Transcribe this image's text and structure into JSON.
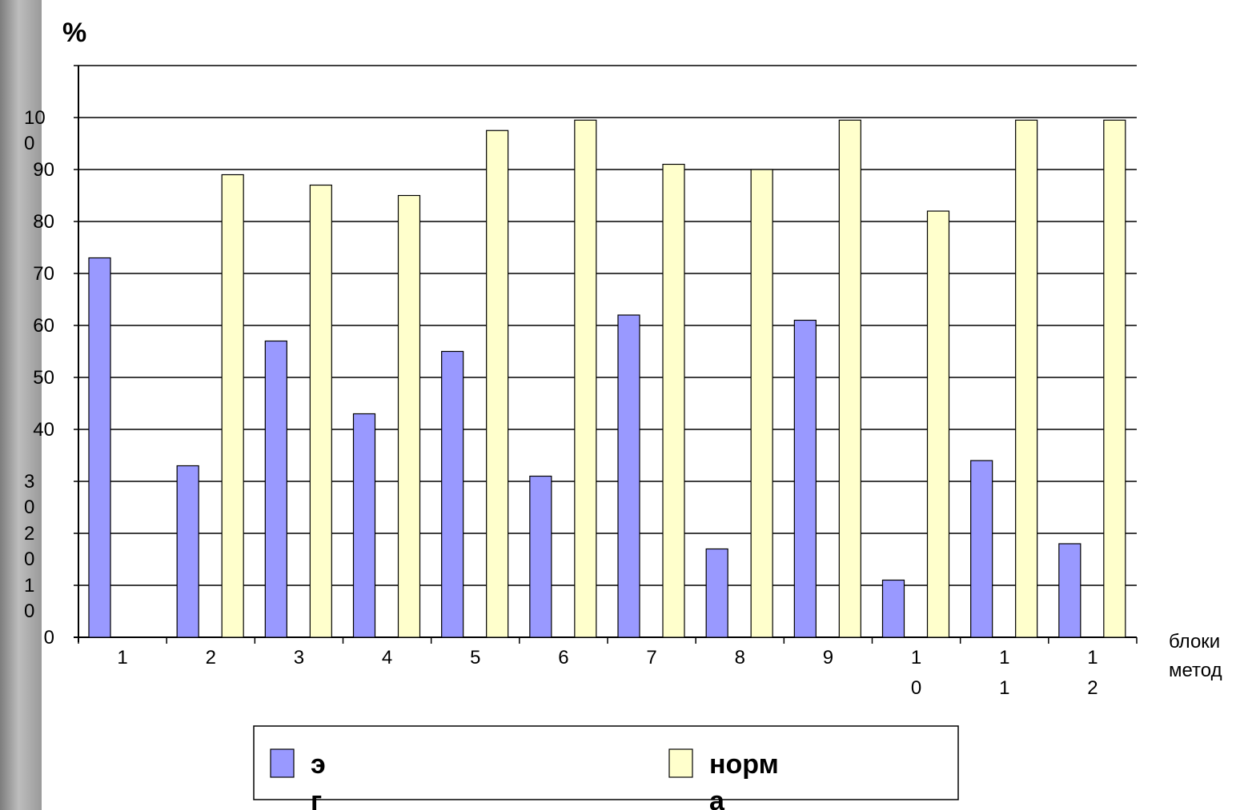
{
  "chart_data": {
    "type": "bar",
    "ylabel": "%",
    "xlabel": [
      "блоки",
      "метод"
    ],
    "ylim": [
      0,
      110
    ],
    "y_ticks": [
      0,
      10,
      20,
      30,
      40,
      50,
      60,
      70,
      80,
      90,
      100
    ],
    "y_tick_labels": [
      "0",
      "1\n0",
      "2\n0",
      "3\n0",
      "40",
      "50",
      "60",
      "70",
      "80",
      "90",
      "10\n0"
    ],
    "categories": [
      "1",
      "2",
      "3",
      "4",
      "5",
      "6",
      "7",
      "8",
      "9",
      "1\n0",
      "1\n1",
      "1\n2"
    ],
    "grid": "horizontal",
    "legend_position": "bottom",
    "series": [
      {
        "name": "эг",
        "legend_label": [
          "э",
          "г"
        ],
        "color": "#9999ff",
        "values": [
          73,
          33,
          57,
          43,
          55,
          31,
          62,
          17,
          61,
          11,
          34,
          18
        ]
      },
      {
        "name": "норма",
        "legend_label": [
          "норм",
          "а"
        ],
        "color": "#ffffcc",
        "values": [
          null,
          89,
          87,
          85,
          97.5,
          99.5,
          91,
          90,
          99.5,
          82,
          99.5,
          99.5
        ]
      }
    ]
  }
}
